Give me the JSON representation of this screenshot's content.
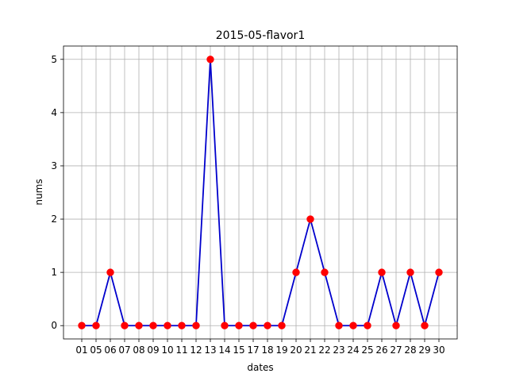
{
  "chart_data": {
    "type": "line",
    "title": "2015-05-flavor1",
    "xlabel": "dates",
    "ylabel": "nums",
    "categories": [
      "01",
      "05",
      "06",
      "07",
      "08",
      "09",
      "10",
      "11",
      "12",
      "13",
      "14",
      "15",
      "17",
      "18",
      "19",
      "20",
      "21",
      "22",
      "23",
      "24",
      "25",
      "26",
      "27",
      "28",
      "29",
      "30"
    ],
    "series": [
      {
        "values": [
          0,
          0,
          1,
          0,
          0,
          0,
          0,
          0,
          0,
          5,
          0,
          0,
          0,
          0,
          0,
          1,
          2,
          1,
          0,
          0,
          0,
          1,
          0,
          1,
          0,
          1
        ],
        "line_color": "#0000cc",
        "marker_color": "#ff0000"
      }
    ],
    "yticks": [
      "0",
      "1",
      "2",
      "3",
      "4",
      "5"
    ],
    "ylim": [
      -0.25,
      5.25
    ],
    "grid": true,
    "legend": "none"
  }
}
